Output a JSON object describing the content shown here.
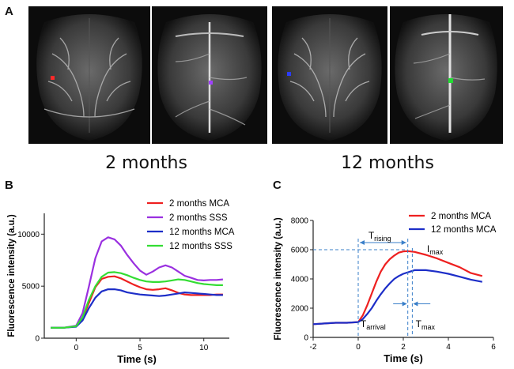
{
  "panels": {
    "a": "A",
    "b": "B",
    "c": "C"
  },
  "panel_a": {
    "captions": [
      "2 months",
      "12 months"
    ],
    "roi_colors": [
      "#ff2a2a",
      "#a040ff",
      "#2b3cff",
      "#22dd33"
    ]
  },
  "chart_data": [
    {
      "type": "line",
      "panel": "B",
      "xlabel": "Time (s)",
      "ylabel": "Fluorescence intensity (a.u.)",
      "xlim": [
        -2.5,
        12
      ],
      "ylim": [
        0,
        12000
      ],
      "xticks": [
        0,
        5,
        10
      ],
      "yticks": [
        0,
        5000,
        10000
      ],
      "xtick_labels": [
        "0",
        "5",
        "10"
      ],
      "ytick_labels": [
        "0",
        "5000",
        "10000"
      ],
      "legend": "top-right",
      "grid": false,
      "series": [
        {
          "name": "2 months MCA",
          "color": "#ee2020",
          "x": [
            -2,
            -1,
            0,
            0.5,
            1,
            1.5,
            2,
            2.5,
            3,
            3.5,
            4,
            4.5,
            5,
            5.5,
            6,
            6.5,
            7,
            7.5,
            8,
            8.5,
            9,
            9.5,
            10,
            10.5,
            11,
            11.5
          ],
          "y": [
            1000,
            1000,
            1150,
            1900,
            3400,
            4900,
            5700,
            5900,
            5950,
            5750,
            5450,
            5150,
            4900,
            4700,
            4650,
            4700,
            4800,
            4600,
            4350,
            4200,
            4150,
            4150,
            4150,
            4150,
            4200,
            4200
          ]
        },
        {
          "name": "2 months SSS",
          "color": "#9a30e0",
          "x": [
            -2,
            -1,
            0,
            0.5,
            1,
            1.5,
            2,
            2.5,
            3,
            3.5,
            4,
            4.5,
            5,
            5.5,
            6,
            6.5,
            7,
            7.5,
            8,
            8.5,
            9,
            9.5,
            10,
            10.5,
            11,
            11.5
          ],
          "y": [
            1000,
            1000,
            1200,
            2400,
            5000,
            7700,
            9300,
            9700,
            9500,
            8900,
            8000,
            7200,
            6500,
            6100,
            6400,
            6800,
            7000,
            6800,
            6400,
            6000,
            5800,
            5600,
            5550,
            5600,
            5600,
            5650
          ]
        },
        {
          "name": "12 months MCA",
          "color": "#1d2ec8",
          "x": [
            -2,
            -1,
            0,
            0.5,
            1,
            1.5,
            2,
            2.5,
            3,
            3.5,
            4,
            4.5,
            5,
            5.5,
            6,
            6.5,
            7,
            7.5,
            8,
            8.5,
            9,
            9.5,
            10,
            10.5,
            11,
            11.5
          ],
          "y": [
            1000,
            1000,
            1100,
            1700,
            2900,
            3900,
            4500,
            4700,
            4700,
            4600,
            4400,
            4300,
            4200,
            4150,
            4100,
            4050,
            4100,
            4200,
            4300,
            4400,
            4350,
            4300,
            4250,
            4200,
            4150,
            4150
          ]
        },
        {
          "name": "12 months SSS",
          "color": "#33dd33",
          "x": [
            -2,
            -1,
            0,
            0.5,
            1,
            1.5,
            2,
            2.5,
            3,
            3.5,
            4,
            4.5,
            5,
            5.5,
            6,
            6.5,
            7,
            7.5,
            8,
            8.5,
            9,
            9.5,
            10,
            10.5,
            11,
            11.5
          ],
          "y": [
            1000,
            1000,
            1150,
            2000,
            3700,
            5000,
            5900,
            6300,
            6350,
            6250,
            6050,
            5800,
            5600,
            5450,
            5400,
            5400,
            5450,
            5550,
            5650,
            5600,
            5450,
            5300,
            5200,
            5150,
            5100,
            5100
          ]
        }
      ]
    },
    {
      "type": "line",
      "panel": "C",
      "xlabel": "Time (s)",
      "ylabel": "Fluorescence intensity (a.u.)",
      "xlim": [
        -2,
        6
      ],
      "ylim": [
        0,
        8000
      ],
      "xticks": [
        -2,
        0,
        2,
        4,
        6
      ],
      "yticks": [
        0,
        2000,
        4000,
        6000,
        8000
      ],
      "xtick_labels": [
        "-2",
        "0",
        "2",
        "4",
        "6"
      ],
      "ytick_labels": [
        "0",
        "2000",
        "4000",
        "6000",
        "8000"
      ],
      "legend": "top-right",
      "grid": false,
      "series": [
        {
          "name": "2 months MCA",
          "color": "#ee2020",
          "x": [
            -2,
            -1.5,
            -1,
            -0.5,
            0,
            0.2,
            0.4,
            0.6,
            0.8,
            1.0,
            1.2,
            1.4,
            1.6,
            1.8,
            2.0,
            2.2,
            2.5,
            3.0,
            3.5,
            4.0,
            4.5,
            5.0,
            5.5
          ],
          "y": [
            900,
            950,
            1000,
            1000,
            1050,
            1500,
            2200,
            3000,
            3800,
            4500,
            5000,
            5350,
            5600,
            5800,
            5880,
            5900,
            5850,
            5650,
            5400,
            5100,
            4800,
            4400,
            4200
          ]
        },
        {
          "name": "12 months MCA",
          "color": "#1d2ec8",
          "x": [
            -2,
            -1.5,
            -1,
            -0.5,
            0,
            0.2,
            0.4,
            0.6,
            0.8,
            1.0,
            1.2,
            1.4,
            1.6,
            1.8,
            2.0,
            2.2,
            2.5,
            3.0,
            3.5,
            4.0,
            4.5,
            5.0,
            5.5
          ],
          "y": [
            900,
            950,
            1000,
            1000,
            1050,
            1250,
            1600,
            2000,
            2500,
            2950,
            3350,
            3700,
            4000,
            4200,
            4350,
            4450,
            4600,
            4600,
            4500,
            4350,
            4150,
            3950,
            3800
          ]
        }
      ],
      "annotations": {
        "t_rising": "T",
        "t_rising_sub": "rising",
        "i_max": "I",
        "i_max_sub": "max",
        "t_arrival": "T",
        "t_arrival_sub": "arrival",
        "t_max": "T",
        "t_max_sub": "max",
        "i_max_value": 6000,
        "t_arrival_time": 0,
        "t_max_time": 2.2
      }
    }
  ]
}
